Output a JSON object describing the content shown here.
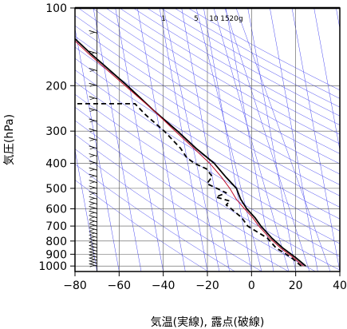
{
  "chart_data": {
    "type": "line",
    "subtype": "skew-T log-P diagram",
    "xlabel": "気温(実線), 露点(破線)",
    "ylabel": "気圧(hPa)",
    "xlim": [
      -80,
      40
    ],
    "ylim": [
      1050,
      100
    ],
    "y_scale": "log",
    "x_ticks": [
      -80,
      -60,
      -40,
      -20,
      0,
      20,
      40
    ],
    "x_tick_labels": [
      "−80",
      "−60",
      "−40",
      "−20",
      "0",
      "20",
      "40"
    ],
    "y_ticks": [
      100,
      200,
      300,
      400,
      500,
      600,
      700,
      800,
      900,
      1000
    ],
    "y_tick_labels": [
      "100",
      "200",
      "300",
      "400",
      "500",
      "600",
      "700",
      "800",
      "900",
      "1000"
    ],
    "mixing_ratio_labels": [
      "1",
      "5",
      "10",
      "15",
      "20g"
    ],
    "mixing_ratio_values": [
      1,
      5,
      10,
      15,
      20
    ],
    "colors": {
      "background_lines": "#4a4af0",
      "grid": "#555555",
      "temperature": "#000000",
      "dewpoint": "#000000",
      "parcel": "#c0102a",
      "frame": "#000000"
    },
    "series": [
      {
        "style": "solid",
        "points": [
          [
            1000,
            25
          ],
          [
            925,
            21
          ],
          [
            850,
            16
          ],
          [
            780,
            12
          ],
          [
            700,
            8
          ],
          [
            650,
            6
          ],
          [
            600,
            3
          ],
          [
            550,
            1
          ],
          [
            500,
            0
          ],
          [
            450,
            -4
          ],
          [
            400,
            -8
          ],
          [
            350,
            -15
          ],
          [
            300,
            -22
          ],
          [
            250,
            -31
          ],
          [
            200,
            -41
          ],
          [
            150,
            -55
          ],
          [
            120,
            -65
          ],
          [
            110,
            -72
          ],
          [
            100,
            -75
          ]
        ]
      },
      {
        "style": "dashed",
        "points": [
          [
            1000,
            23
          ],
          [
            925,
            19
          ],
          [
            850,
            13
          ],
          [
            780,
            10
          ],
          [
            700,
            2
          ],
          [
            650,
            0
          ],
          [
            600,
            -4
          ],
          [
            580,
            -6
          ],
          [
            560,
            -4
          ],
          [
            540,
            -10
          ],
          [
            520,
            -5
          ],
          [
            480,
            -13
          ],
          [
            450,
            -10
          ],
          [
            420,
            -12
          ],
          [
            400,
            -17
          ],
          [
            380,
            -20
          ],
          [
            350,
            -22
          ],
          [
            300,
            -28
          ],
          [
            260,
            -35
          ],
          [
            235,
            -39
          ],
          [
            235,
            -72
          ]
        ]
      },
      {
        "style": "solid-red",
        "points": [
          [
            1000,
            24
          ],
          [
            925,
            20
          ],
          [
            850,
            15
          ],
          [
            780,
            11
          ],
          [
            700,
            7
          ],
          [
            650,
            5
          ],
          [
            600,
            2
          ],
          [
            550,
            -1
          ],
          [
            500,
            -3
          ],
          [
            450,
            -6
          ],
          [
            400,
            -10
          ],
          [
            350,
            -16
          ],
          [
            300,
            -23
          ],
          [
            250,
            -31
          ],
          [
            200,
            -42
          ],
          [
            150,
            -56
          ],
          [
            120,
            -66
          ],
          [
            100,
            -76
          ]
        ]
      }
    ],
    "wind_barbs": {
      "x_position": -70,
      "pressures": [
        1000,
        975,
        950,
        925,
        900,
        875,
        850,
        825,
        800,
        775,
        750,
        725,
        700,
        675,
        650,
        625,
        600,
        575,
        550,
        525,
        500,
        475,
        450,
        425,
        400,
        375,
        350,
        325,
        300,
        275,
        250,
        225,
        200,
        175,
        150,
        125,
        100
      ]
    },
    "grid": true
  }
}
